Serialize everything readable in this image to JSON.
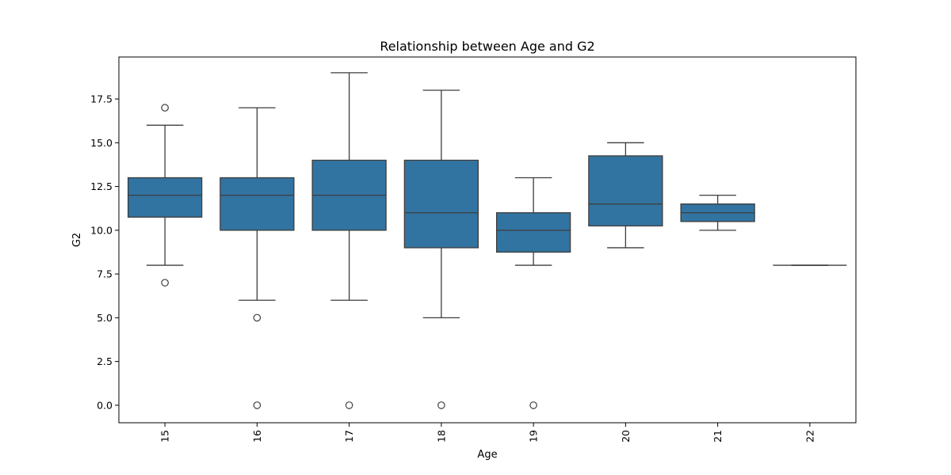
{
  "chart_data": {
    "type": "box",
    "title": "Relationship between Age and G2",
    "xlabel": "Age",
    "ylabel": "G2",
    "categories": [
      "15",
      "16",
      "17",
      "18",
      "19",
      "20",
      "21",
      "22"
    ],
    "boxes": [
      {
        "category": "15",
        "whisker_low": 8,
        "q1": 10.75,
        "median": 12,
        "q3": 13,
        "whisker_high": 16,
        "outliers": [
          17,
          7
        ]
      },
      {
        "category": "16",
        "whisker_low": 6,
        "q1": 10,
        "median": 12,
        "q3": 13,
        "whisker_high": 17,
        "outliers": [
          5,
          0
        ]
      },
      {
        "category": "17",
        "whisker_low": 6,
        "q1": 10,
        "median": 12,
        "q3": 14,
        "whisker_high": 19,
        "outliers": [
          0
        ]
      },
      {
        "category": "18",
        "whisker_low": 5,
        "q1": 9,
        "median": 11,
        "q3": 14,
        "whisker_high": 18,
        "outliers": [
          0
        ]
      },
      {
        "category": "19",
        "whisker_low": 8,
        "q1": 8.75,
        "median": 10,
        "q3": 11,
        "whisker_high": 13,
        "outliers": [
          0
        ]
      },
      {
        "category": "20",
        "whisker_low": 9,
        "q1": 10.25,
        "median": 11.5,
        "q3": 14.25,
        "whisker_high": 15,
        "outliers": []
      },
      {
        "category": "21",
        "whisker_low": 10,
        "q1": 10.5,
        "median": 11,
        "q3": 11.5,
        "whisker_high": 12,
        "outliers": []
      },
      {
        "category": "22",
        "whisker_low": 8,
        "q1": 8,
        "median": 8,
        "q3": 8,
        "whisker_high": 8,
        "outliers": []
      }
    ],
    "yticks": [
      "0.0",
      "2.5",
      "5.0",
      "7.5",
      "10.0",
      "12.5",
      "15.0",
      "17.5"
    ],
    "ylim": [
      -1,
      19.9
    ],
    "box_color": "#3274a1",
    "line_color": "#3d3d3d",
    "grid": false,
    "legend": "none"
  }
}
